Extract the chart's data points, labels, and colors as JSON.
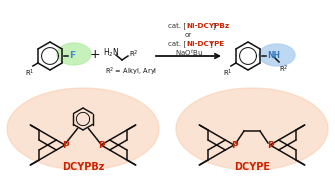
{
  "bg_color": "#ffffff",
  "lc": "#111111",
  "lw": 1.1,
  "red_label": "#cc2200",
  "F_color": "#4488cc",
  "NH_color": "#3377bb",
  "green_glow": "#b8eeaa",
  "blue_glow": "#aaccee",
  "red_glow": "#f8c8a8",
  "cat1": "Ni-DCYPBz",
  "cat2": "Ni-DCYPE",
  "dcypbz_label": "DCYPBz",
  "dcype_label": "DCYPE",
  "r2_line": "R² = Alkyl, Aryl"
}
